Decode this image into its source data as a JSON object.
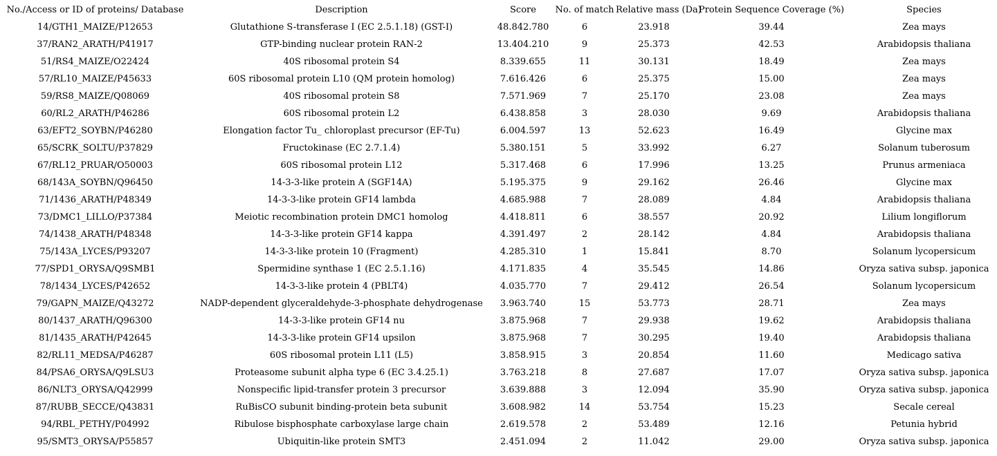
{
  "table": {
    "columns": [
      {
        "key": "id",
        "label": "No./Access or ID of proteins/ Database"
      },
      {
        "key": "description",
        "label": "Description"
      },
      {
        "key": "score",
        "label": "Score"
      },
      {
        "key": "matches",
        "label": "No. of match"
      },
      {
        "key": "mass",
        "label": "Relative mass (Da)"
      },
      {
        "key": "coverage",
        "label": "Protein Sequence Coverage (%)"
      },
      {
        "key": "species",
        "label": "Species"
      }
    ],
    "rows": [
      {
        "id": "14/GTH1_MAIZE/P12653",
        "description": "Glutathione S-transferase I (EC 2.5.1.18) (GST-I)",
        "score": "48.842.780",
        "matches": "6",
        "mass": "23.918",
        "coverage": "39.44",
        "species": "Zea mays"
      },
      {
        "id": "37/RAN2_ARATH/P41917",
        "description": "GTP-binding nuclear protein RAN-2",
        "score": "13.404.210",
        "matches": "9",
        "mass": "25.373",
        "coverage": "42.53",
        "species": "Arabidopsis thaliana"
      },
      {
        "id": "51/RS4_MAIZE/O22424",
        "description": "40S ribosomal protein S4",
        "score": "8.339.655",
        "matches": "11",
        "mass": "30.131",
        "coverage": "18.49",
        "species": "Zea mays"
      },
      {
        "id": "57/RL10_MAIZE/P45633",
        "description": "60S ribosomal protein L10 (QM protein homolog)",
        "score": "7.616.426",
        "matches": "6",
        "mass": "25.375",
        "coverage": "15.00",
        "species": "Zea mays"
      },
      {
        "id": "59/RS8_MAIZE/Q08069",
        "description": "40S ribosomal protein S8",
        "score": "7.571.969",
        "matches": "7",
        "mass": "25.170",
        "coverage": "23.08",
        "species": "Zea mays"
      },
      {
        "id": "60/RL2_ARATH/P46286",
        "description": "60S ribosomal protein L2",
        "score": "6.438.858",
        "matches": "3",
        "mass": "28.030",
        "coverage": "9.69",
        "species": "Arabidopsis thaliana"
      },
      {
        "id": "63/EFT2_SOYBN/P46280",
        "description": "Elongation factor Tu_ chloroplast precursor (EF-Tu)",
        "score": "6.004.597",
        "matches": "13",
        "mass": "52.623",
        "coverage": "16.49",
        "species": "Glycine max"
      },
      {
        "id": "65/SCRK_SOLTU/P37829",
        "description": "Fructokinase (EC 2.7.1.4)",
        "score": "5.380.151",
        "matches": "5",
        "mass": "33.992",
        "coverage": "6.27",
        "species": "Solanum tuberosum"
      },
      {
        "id": "67/RL12_PRUAR/O50003",
        "description": "60S ribosomal protein L12",
        "score": "5.317.468",
        "matches": "6",
        "mass": "17.996",
        "coverage": "13.25",
        "species": "Prunus armeniaca"
      },
      {
        "id": "68/143A_SOYBN/Q96450",
        "description": "14-3-3-like protein A (SGF14A)",
        "score": "5.195.375",
        "matches": "9",
        "mass": "29.162",
        "coverage": "26.46",
        "species": "Glycine max"
      },
      {
        "id": "71/1436_ARATH/P48349",
        "description": "14-3-3-like protein GF14 lambda",
        "score": "4.685.988",
        "matches": "7",
        "mass": "28.089",
        "coverage": "4.84",
        "species": "Arabidopsis thaliana"
      },
      {
        "id": "73/DMC1_LILLO/P37384",
        "description": "Meiotic recombination protein DMC1 homolog",
        "score": "4.418.811",
        "matches": "6",
        "mass": "38.557",
        "coverage": "20.92",
        "species": "Lilium longiflorum"
      },
      {
        "id": "74/1438_ARATH/P48348",
        "description": "14-3-3-like protein GF14 kappa",
        "score": "4.391.497",
        "matches": "2",
        "mass": "28.142",
        "coverage": "4.84",
        "species": "Arabidopsis thaliana"
      },
      {
        "id": "75/143A_LYCES/P93207",
        "description": "14-3-3-like protein 10 (Fragment)",
        "score": "4.285.310",
        "matches": "1",
        "mass": "15.841",
        "coverage": "8.70",
        "species": "Solanum lycopersicum"
      },
      {
        "id": "77/SPD1_ORYSA/Q9SMB1",
        "description": "Spermidine synthase 1 (EC 2.5.1.16)",
        "score": "4.171.835",
        "matches": "4",
        "mass": "35.545",
        "coverage": "14.86",
        "species": "Oryza sativa subsp. japonica"
      },
      {
        "id": "78/1434_LYCES/P42652",
        "description": "14-3-3-like protein 4 (PBLT4)",
        "score": "4.035.770",
        "matches": "7",
        "mass": "29.412",
        "coverage": "26.54",
        "species": "Solanum lycopersicum"
      },
      {
        "id": "79/GAPN_MAIZE/Q43272",
        "description": "NADP-dependent glyceraldehyde-3-phosphate dehydrogenase",
        "score": "3.963.740",
        "matches": "15",
        "mass": "53.773",
        "coverage": "28.71",
        "species": "Zea mays"
      },
      {
        "id": "80/1437_ARATH/Q96300",
        "description": "14-3-3-like protein GF14 nu",
        "score": "3.875.968",
        "matches": "7",
        "mass": "29.938",
        "coverage": "19.62",
        "species": "Arabidopsis thaliana"
      },
      {
        "id": "81/1435_ARATH/P42645",
        "description": "14-3-3-like protein GF14 upsilon",
        "score": "3.875.968",
        "matches": "7",
        "mass": "30.295",
        "coverage": "19.40",
        "species": "Arabidopsis thaliana"
      },
      {
        "id": "82/RL11_MEDSA/P46287",
        "description": "60S ribosomal protein L11 (L5)",
        "score": "3.858.915",
        "matches": "3",
        "mass": "20.854",
        "coverage": "11.60",
        "species": "Medicago sativa"
      },
      {
        "id": "84/PSA6_ORYSA/Q9LSU3",
        "description": "Proteasome subunit alpha type 6 (EC 3.4.25.1)",
        "score": "3.763.218",
        "matches": "8",
        "mass": "27.687",
        "coverage": "17.07",
        "species": "Oryza sativa subsp. japonica"
      },
      {
        "id": "86/NLT3_ORYSA/Q42999",
        "description": "Nonspecific lipid-transfer protein 3 precursor",
        "score": "3.639.888",
        "matches": "3",
        "mass": "12.094",
        "coverage": "35.90",
        "species": "Oryza sativa subsp. japonica"
      },
      {
        "id": "87/RUBB_SECCE/Q43831",
        "description": "RuBisCO subunit binding-protein beta subunit",
        "score": "3.608.982",
        "matches": "14",
        "mass": "53.754",
        "coverage": "15.23",
        "species": "Secale cereal"
      },
      {
        "id": "94/RBL_PETHY/P04992",
        "description": "Ribulose bisphosphate carboxylase large chain",
        "score": "2.619.578",
        "matches": "2",
        "mass": "53.489",
        "coverage": "12.16",
        "species": "Petunia hybrid"
      },
      {
        "id": "95/SMT3_ORYSA/P55857",
        "description": "Ubiquitin-like protein SMT3",
        "score": "2.451.094",
        "matches": "2",
        "mass": "11.042",
        "coverage": "29.00",
        "species": "Oryza sativa subsp. japonica"
      }
    ]
  }
}
